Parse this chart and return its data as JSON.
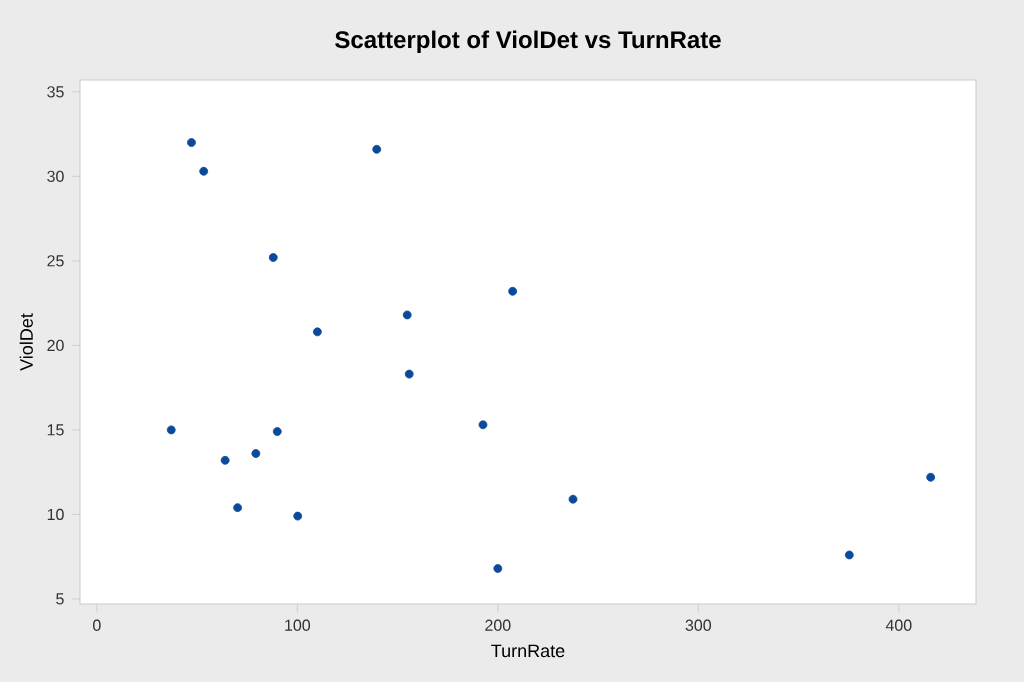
{
  "chart_data": {
    "type": "scatter",
    "title": "Scatterplot of ViolDet vs TurnRate",
    "xlabel": "TurnRate",
    "ylabel": "ViolDet",
    "x": [
      47.2,
      53.3,
      139.6,
      88,
      110,
      154.8,
      155.8,
      37.1,
      90,
      64,
      79.3,
      70.2,
      100.2,
      192.6,
      200,
      207.4,
      237.5,
      375.3,
      415.9
    ],
    "values": [
      32.0,
      30.3,
      31.6,
      25.2,
      20.8,
      21.8,
      18.3,
      15.0,
      14.9,
      13.2,
      13.6,
      10.4,
      9.9,
      15.3,
      6.8,
      23.2,
      10.9,
      7.6,
      12.2
    ],
    "color": "#0b4a9b",
    "marker": "circle",
    "xlim": [
      -8.4,
      438.5
    ],
    "ylim": [
      4.7,
      35.7
    ],
    "xticks": [
      0,
      100,
      200,
      300,
      400
    ],
    "yticks": [
      5,
      10,
      15,
      20,
      25,
      30,
      35
    ],
    "grid": false
  }
}
